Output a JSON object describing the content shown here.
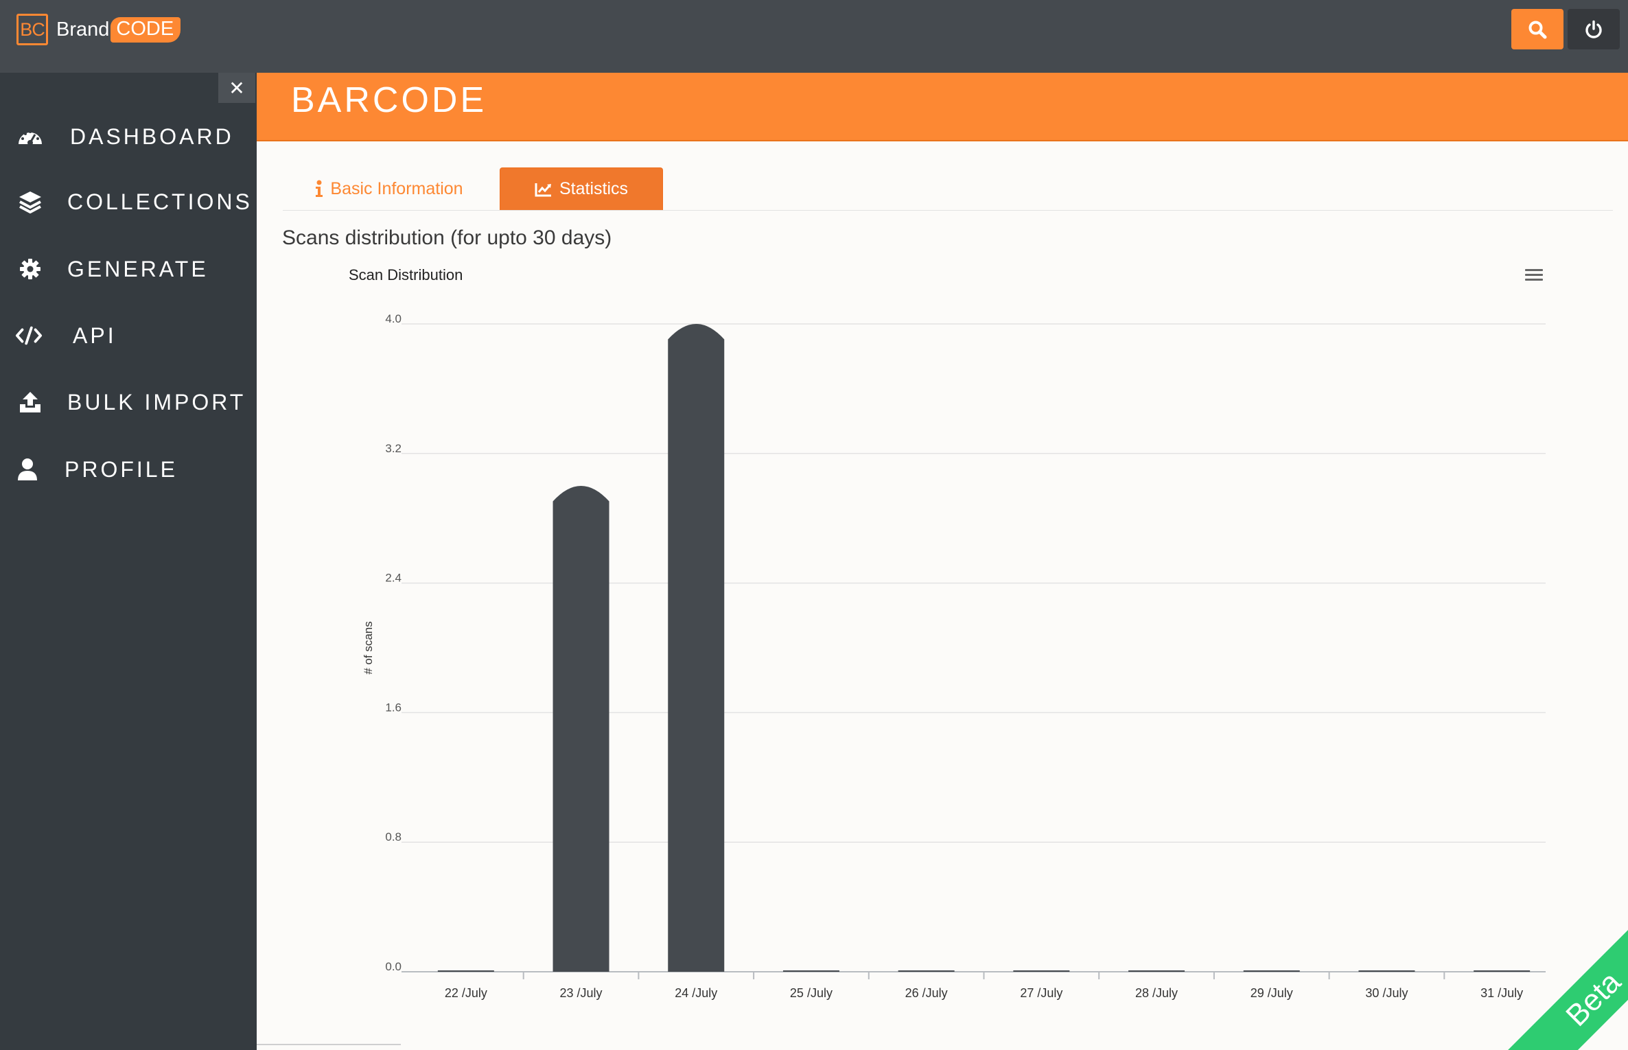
{
  "app": {
    "logo_initials": "BC",
    "brand_word": "Brand",
    "code_word": "CODE",
    "accent_color": "#fd8833",
    "topbar_color": "#454a4f",
    "sidebar_color": "#353b40"
  },
  "topbar": {
    "search_icon": "search-icon",
    "power_icon": "power-icon"
  },
  "sidebar": {
    "close_glyph": "✕",
    "items": [
      {
        "label": "DASHBOARD",
        "icon": "dashboard-gauge-icon"
      },
      {
        "label": "COLLECTIONS",
        "icon": "layers-icon"
      },
      {
        "label": "GENERATE",
        "icon": "gear-icon"
      },
      {
        "label": "API",
        "icon": "code-icon"
      },
      {
        "label": "BULK IMPORT",
        "icon": "upload-icon"
      },
      {
        "label": "PROFILE",
        "icon": "user-icon"
      }
    ]
  },
  "header": {
    "title": "BARCODE"
  },
  "tabs": [
    {
      "label": "Basic Information",
      "icon": "info-icon",
      "active": false
    },
    {
      "label": "Statistics",
      "icon": "line-chart-icon",
      "active": true
    }
  ],
  "section": {
    "heading": "Scans distribution (for upto 30 days)"
  },
  "chart_data": {
    "type": "bar",
    "title": "Scan Distribution",
    "xlabel": "",
    "ylabel": "# of scans",
    "categories": [
      "22 /July",
      "23 /July",
      "24 /July",
      "25 /July",
      "26 /July",
      "27 /July",
      "28 /July",
      "29 /July",
      "30 /July",
      "31 /July"
    ],
    "values": [
      0,
      3,
      4,
      0,
      0,
      0,
      0,
      0,
      0,
      0
    ],
    "yticks": [
      "0.0",
      "0.8",
      "1.6",
      "2.4",
      "3.2",
      "4.0"
    ],
    "ylim": [
      0,
      4
    ],
    "grid": true,
    "legend": "none",
    "bar_color": "#454a4f"
  },
  "beta": {
    "label": "Beta"
  }
}
